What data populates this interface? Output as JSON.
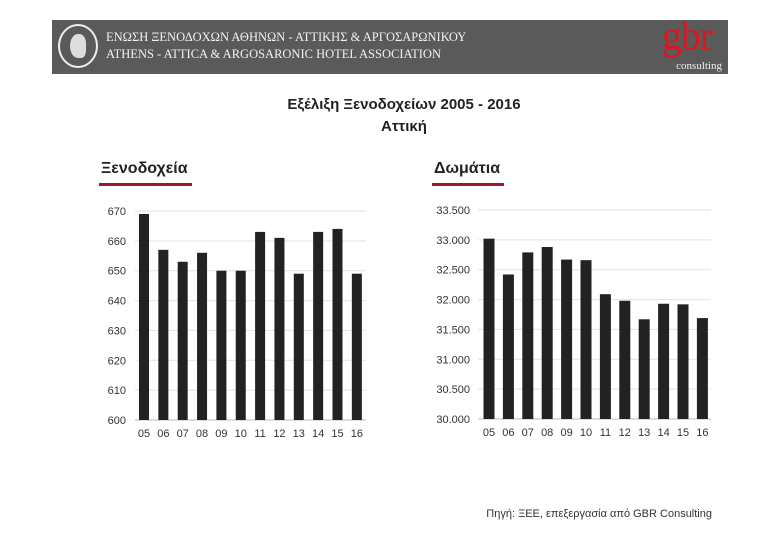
{
  "header": {
    "org_name_greek": "ΕΝΩΣΗ ΞΕΝΟΔΟΧΩΝ ΑΘΗΝΩΝ - ΑΤΤΙΚΗΣ & ΑΡΓΟΣΑΡΩΝΙΚΟΥ",
    "org_name_english": "ATHENS - ATTICA & ARGOSARONIC HOTEL ASSOCIATION",
    "logo_text": "gbr",
    "logo_subtext": "consulting",
    "banner_color": "#5a5a5a",
    "logo_color": "#e0141e"
  },
  "title": "Εξέλιξη Ξενοδοχείων 2005 - 2016",
  "subtitle": "Αττική",
  "source": "Πηγή: ΞΕΕ, επεξεργασία από GBR Consulting",
  "chart_data": [
    {
      "type": "bar",
      "title": "Ξενοδοχεία",
      "categories": [
        "05",
        "06",
        "07",
        "08",
        "09",
        "10",
        "11",
        "12",
        "13",
        "14",
        "15",
        "16"
      ],
      "values": [
        669,
        657,
        653,
        656,
        650,
        650,
        663,
        661,
        649,
        663,
        664,
        649
      ],
      "ylim": [
        600,
        670
      ],
      "yticks": [
        "600",
        "610",
        "620",
        "630",
        "640",
        "650",
        "660",
        "670"
      ],
      "ytick_values": [
        600,
        610,
        620,
        630,
        640,
        650,
        660,
        670
      ],
      "grid": true,
      "bar_color": "#222222"
    },
    {
      "type": "bar",
      "title": "Δωμάτια",
      "categories": [
        "05",
        "06",
        "07",
        "08",
        "09",
        "10",
        "11",
        "12",
        "13",
        "14",
        "15",
        "16"
      ],
      "values": [
        33020,
        32420,
        32790,
        32880,
        32670,
        32660,
        32090,
        31980,
        31670,
        31930,
        31920,
        31690
      ],
      "ylim": [
        30000,
        33500
      ],
      "yticks": [
        "30.000",
        "30.500",
        "31.000",
        "31.500",
        "32.000",
        "32.500",
        "33.000",
        "33.500"
      ],
      "ytick_values": [
        30000,
        30500,
        31000,
        31500,
        32000,
        32500,
        33000,
        33500
      ],
      "grid": true,
      "bar_color": "#222222"
    }
  ]
}
